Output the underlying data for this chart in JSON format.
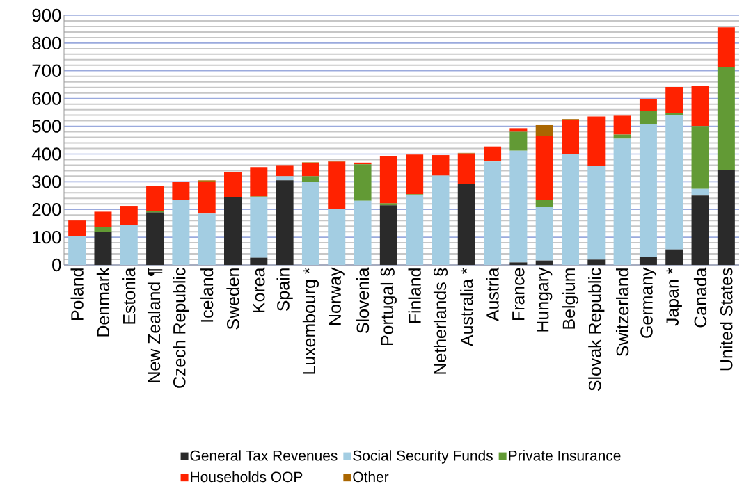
{
  "chart_data": {
    "type": "bar",
    "stacked": true,
    "categories": [
      "Poland",
      "Denmark",
      "Estonia",
      "New Zealand ¶",
      "Czech Republic",
      "Iceland",
      "Sweden",
      "Korea",
      "Spain",
      "Luxembourg *",
      "Norway",
      "Slovenia",
      "Portugal §",
      "Finland",
      "Netherlands §",
      "Australia *",
      "Austria",
      "France",
      "Hungary",
      "Belgium",
      "Slovak Republic",
      "Switzerland",
      "Germany",
      "Japan *",
      "Canada",
      "United States"
    ],
    "series": [
      {
        "name": "General Tax Revenues",
        "color": "#2a2a2a",
        "values": [
          0,
          118,
          0,
          189,
          0,
          0,
          244,
          26,
          305,
          0,
          0,
          0,
          215,
          0,
          0,
          292,
          0,
          9,
          16,
          0,
          19,
          0,
          29,
          56,
          250,
          343
        ]
      },
      {
        "name": "Social Security Funds",
        "color": "#a3cde2",
        "values": [
          105,
          0,
          145,
          0,
          235,
          185,
          0,
          219,
          15,
          299,
          203,
          231,
          0,
          253,
          322,
          0,
          373,
          403,
          194,
          401,
          339,
          455,
          478,
          485,
          24,
          0
        ]
      },
      {
        "name": "Private Insurance",
        "color": "#629a35",
        "values": [
          0,
          18,
          0,
          6,
          0,
          0,
          0,
          2,
          0,
          21,
          0,
          132,
          7,
          2,
          null,
          0,
          2,
          68,
          25,
          0,
          0,
          15,
          49,
          6,
          227,
          369
        ]
      },
      {
        "name": "Households OOP",
        "color": "#ff2200",
        "values": [
          55,
          56,
          68,
          91,
          64,
          116,
          91,
          106,
          40,
          48,
          169,
          6,
          171,
          143,
          74,
          110,
          52,
          13,
          230,
          123,
          177,
          68,
          42,
          95,
          146,
          145
        ]
      },
      {
        "name": "Other",
        "color": "#aa6600",
        "values": [
          2,
          0,
          0,
          0,
          0,
          4,
          0,
          0,
          0,
          2,
          2,
          0,
          0,
          0,
          0,
          2,
          0,
          0,
          39,
          2,
          0,
          0,
          null,
          0,
          0,
          0
        ]
      }
    ],
    "ylim": [
      0,
      900
    ],
    "yticks": [
      0,
      100,
      200,
      300,
      400,
      500,
      600,
      700,
      800,
      900
    ],
    "grid": true,
    "legend": "bottom"
  }
}
